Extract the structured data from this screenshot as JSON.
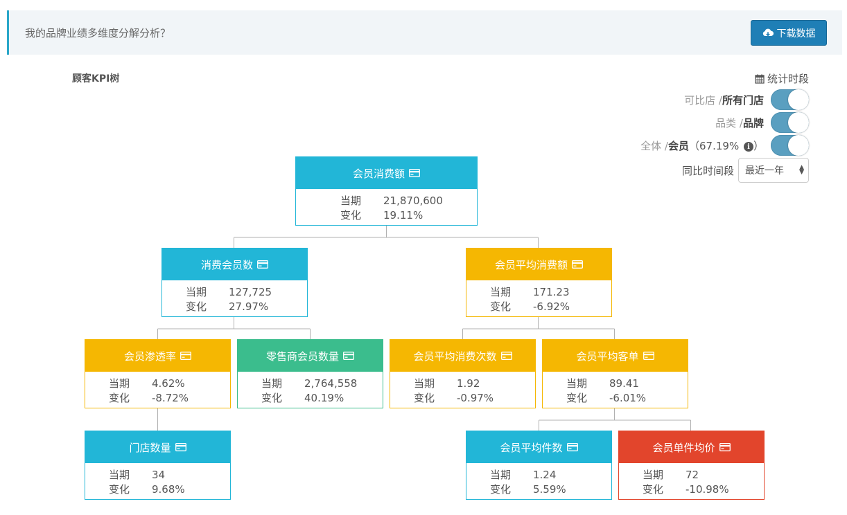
{
  "header": {
    "title": "我的品牌业绩多维度分解分析？",
    "download_label": "下载数据"
  },
  "tree_title": "顾客KPI树",
  "period_label": "统计时段",
  "toggles": [
    {
      "off_label": "可比店",
      "sep": "/",
      "on_label": "所有门店",
      "extra": "",
      "enabled": true
    },
    {
      "off_label": "品类",
      "sep": "/",
      "on_label": "品牌",
      "extra": "",
      "enabled": true
    },
    {
      "off_label": "全体",
      "sep": "/",
      "on_label": "会员",
      "extra": "（67.19%",
      "extra_close": "）",
      "enabled": true
    }
  ],
  "compare": {
    "label": "同比时间段",
    "selected": "最近一年"
  },
  "labels": {
    "current": "当期",
    "change": "变化"
  },
  "nodes": {
    "member_sales": {
      "title": "会员消费额",
      "current": "21,870,600",
      "change": "19.11%",
      "color": "#22b6d7"
    },
    "consuming_members": {
      "title": "消费会员数",
      "current": "127,725",
      "change": "27.97%",
      "color": "#22b6d7"
    },
    "avg_member_spend": {
      "title": "会员平均消费额",
      "current": "171.23",
      "change": "-6.92%",
      "color": "#f5b702"
    },
    "penetration": {
      "title": "会员渗透率",
      "current": "4.62%",
      "change": "-8.72%",
      "color": "#f5b702"
    },
    "retailer_members": {
      "title": "零售商会员数量",
      "current": "2,764,558",
      "change": "40.19%",
      "color": "#3bbd8d"
    },
    "avg_visits": {
      "title": "会员平均消费次数",
      "current": "1.92",
      "change": "-0.97%",
      "color": "#f5b702"
    },
    "avg_ticket": {
      "title": "会员平均客单",
      "current": "89.41",
      "change": "-6.01%",
      "color": "#f5b702"
    },
    "store_count": {
      "title": "门店数量",
      "current": "34",
      "change": "9.68%",
      "color": "#22b6d7"
    },
    "avg_items": {
      "title": "会员平均件数",
      "current": "1.24",
      "change": "5.59%",
      "color": "#22b6d7"
    },
    "avg_item_price": {
      "title": "会员单件均价",
      "current": "72",
      "change": "-10.98%",
      "color": "#e2452c"
    }
  }
}
